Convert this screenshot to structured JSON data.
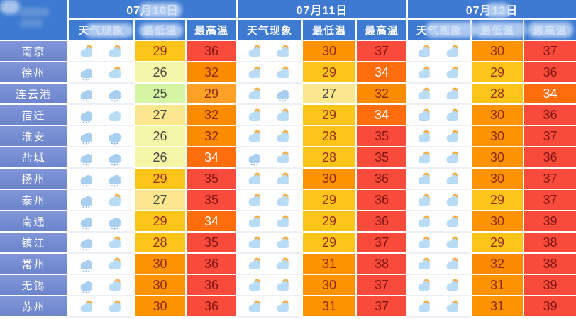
{
  "chart_data": {
    "type": "table",
    "description": "3-day weather forecast table for Jiangsu cities",
    "corner_label": "",
    "date_groups": [
      {
        "date": "07月10日",
        "columns": [
          "天气现象",
          "最低温",
          "最高温"
        ]
      },
      {
        "date": "07月11日",
        "columns": [
          "天气现象",
          "最低温",
          "最高温"
        ]
      },
      {
        "date": "07月12日",
        "columns": [
          "天气现象",
          "最低温",
          "最高温"
        ]
      }
    ],
    "icon_names": {
      "partly": "partly-cloudy-icon",
      "rain": "rain-icon",
      "cloudy": "cloudy-icon"
    },
    "rows": [
      {
        "city": "南京",
        "days": [
          {
            "icons": [
              "partly",
              "partly"
            ],
            "min": 29,
            "max": 36
          },
          {
            "icons": [
              "partly",
              "partly"
            ],
            "min": 30,
            "max": 37
          },
          {
            "icons": [
              "partly",
              "partly"
            ],
            "min": 30,
            "max": 37
          }
        ]
      },
      {
        "city": "徐州",
        "days": [
          {
            "icons": [
              "rain",
              "partly"
            ],
            "min": 26,
            "max": 32
          },
          {
            "icons": [
              "partly",
              "partly"
            ],
            "min": 29,
            "max": 34
          },
          {
            "icons": [
              "partly",
              "partly"
            ],
            "min": 29,
            "max": 36
          }
        ]
      },
      {
        "city": "连云港",
        "days": [
          {
            "icons": [
              "rain",
              "rain"
            ],
            "min": 25,
            "max": 29
          },
          {
            "icons": [
              "partly",
              "rain"
            ],
            "min": 27,
            "max": 32
          },
          {
            "icons": [
              "partly",
              "partly"
            ],
            "min": 28,
            "max": 34
          }
        ]
      },
      {
        "city": "宿迁",
        "days": [
          {
            "icons": [
              "rain",
              "cloudy"
            ],
            "min": 27,
            "max": 32
          },
          {
            "icons": [
              "partly",
              "partly"
            ],
            "min": 29,
            "max": 34
          },
          {
            "icons": [
              "partly",
              "partly"
            ],
            "min": 30,
            "max": 36
          }
        ]
      },
      {
        "city": "淮安",
        "days": [
          {
            "icons": [
              "rain",
              "rain"
            ],
            "min": 26,
            "max": 32
          },
          {
            "icons": [
              "partly",
              "partly"
            ],
            "min": 28,
            "max": 35
          },
          {
            "icons": [
              "partly",
              "partly"
            ],
            "min": 30,
            "max": 37
          }
        ]
      },
      {
        "city": "盐城",
        "days": [
          {
            "icons": [
              "rain",
              "rain"
            ],
            "min": 26,
            "max": 34
          },
          {
            "icons": [
              "rain",
              "partly"
            ],
            "min": 28,
            "max": 35
          },
          {
            "icons": [
              "partly",
              "partly"
            ],
            "min": 30,
            "max": 36
          }
        ]
      },
      {
        "city": "扬州",
        "days": [
          {
            "icons": [
              "rain",
              "rain"
            ],
            "min": 29,
            "max": 35
          },
          {
            "icons": [
              "partly",
              "partly"
            ],
            "min": 30,
            "max": 36
          },
          {
            "icons": [
              "partly",
              "partly"
            ],
            "min": 30,
            "max": 37
          }
        ]
      },
      {
        "city": "泰州",
        "days": [
          {
            "icons": [
              "rain",
              "partly"
            ],
            "min": 27,
            "max": 35
          },
          {
            "icons": [
              "partly",
              "partly"
            ],
            "min": 29,
            "max": 36
          },
          {
            "icons": [
              "partly",
              "partly"
            ],
            "min": 29,
            "max": 37
          }
        ]
      },
      {
        "city": "南通",
        "days": [
          {
            "icons": [
              "rain",
              "rain"
            ],
            "min": 29,
            "max": 34
          },
          {
            "icons": [
              "partly",
              "partly"
            ],
            "min": 29,
            "max": 36
          },
          {
            "icons": [
              "partly",
              "partly"
            ],
            "min": 30,
            "max": 39
          }
        ]
      },
      {
        "city": "镇江",
        "days": [
          {
            "icons": [
              "rain",
              "partly"
            ],
            "min": 28,
            "max": 35
          },
          {
            "icons": [
              "partly",
              "partly"
            ],
            "min": 29,
            "max": 37
          },
          {
            "icons": [
              "partly",
              "partly"
            ],
            "min": 29,
            "max": 38
          }
        ]
      },
      {
        "city": "常州",
        "days": [
          {
            "icons": [
              "rain",
              "partly"
            ],
            "min": 30,
            "max": 36
          },
          {
            "icons": [
              "partly",
              "partly"
            ],
            "min": 31,
            "max": 38
          },
          {
            "icons": [
              "partly",
              "partly"
            ],
            "min": 32,
            "max": 38
          }
        ]
      },
      {
        "city": "无锡",
        "days": [
          {
            "icons": [
              "rain",
              "partly"
            ],
            "min": 30,
            "max": 36
          },
          {
            "icons": [
              "partly",
              "partly"
            ],
            "min": 30,
            "max": 37
          },
          {
            "icons": [
              "partly",
              "partly"
            ],
            "min": 31,
            "max": 39
          }
        ]
      },
      {
        "city": "苏州",
        "days": [
          {
            "icons": [
              "partly",
              "partly"
            ],
            "min": 30,
            "max": 36
          },
          {
            "icons": [
              "partly",
              "partly"
            ],
            "min": 31,
            "max": 37
          },
          {
            "icons": [
              "partly",
              "partly"
            ],
            "min": 31,
            "max": 39
          }
        ]
      }
    ]
  },
  "colors": {
    "header_bg": "#3e7ad2",
    "city_bg_top": "#8096d8",
    "city_bg_bottom": "#6c84cb",
    "grid": "#ffffff",
    "min_bg": {
      "25": "#d5f5a4",
      "26": "#f6f6a8",
      "27": "#fbe88e",
      "28": "#fdc419",
      "29": "#fdc419",
      "30": "#fd9300",
      "31": "#fd9300",
      "32": "#fb8a00"
    },
    "min_fg": {
      "25": "#4a4a42",
      "26": "#4a4a42",
      "27": "#4a4a42",
      "28": "#99301c",
      "29": "#99301c",
      "30": "#8e2a16",
      "31": "#8e2a16",
      "32": "#8e2a16"
    },
    "max_bg": {
      "29": "#ffa126",
      "32": "#fb8c00",
      "34": "#ff6d0c",
      "35": "#f84b3b",
      "36": "#f84b3b",
      "37": "#f84b3b",
      "38": "#f84b3b",
      "39": "#f84b3b"
    },
    "max_fg": {
      "29": "#8e2a16",
      "32": "#8e2a16",
      "34": "#ffffff",
      "35": "#811512",
      "36": "#811512",
      "37": "#811512",
      "38": "#811512",
      "39": "#811512"
    }
  }
}
